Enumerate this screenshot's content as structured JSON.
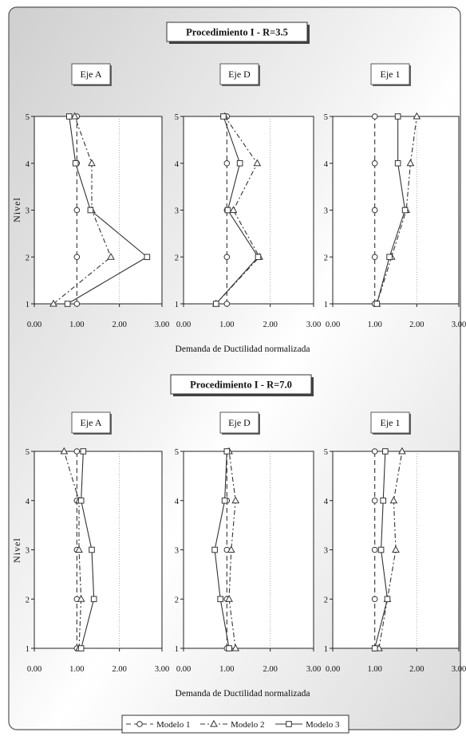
{
  "panel_titles": [
    "Procedimiento I - R=3.5",
    "Procedimiento I - R=7.0"
  ],
  "xlabel": "Demanda de Ductilidad normalizada",
  "ylabel": "Nivel",
  "legend": [
    "Modelo 1",
    "Modelo 2",
    "Modelo 3"
  ],
  "chart_data": [
    {
      "type": "line",
      "group": "Procedimiento I - R=3.5",
      "title": "Eje A",
      "xlim": [
        0,
        3
      ],
      "ylim": [
        1,
        5
      ],
      "xticks": [
        "0.00",
        "1.00",
        "2.00",
        "3.00"
      ],
      "yticks": [
        "1",
        "2",
        "3",
        "4",
        "5"
      ],
      "series": [
        {
          "name": "Modelo 1",
          "x": [
            1.0,
            1.0,
            1.0,
            1.0,
            1.0
          ],
          "y": [
            1,
            2,
            3,
            4,
            5
          ]
        },
        {
          "name": "Modelo 2",
          "x": [
            0.45,
            1.8,
            1.35,
            1.35,
            0.95
          ],
          "y": [
            1,
            2,
            3,
            4,
            5
          ]
        },
        {
          "name": "Modelo 3",
          "x": [
            0.78,
            2.65,
            1.32,
            0.97,
            0.82
          ],
          "y": [
            1,
            2,
            3,
            4,
            5
          ]
        }
      ]
    },
    {
      "type": "line",
      "group": "Procedimiento I - R=3.5",
      "title": "Eje D",
      "xlim": [
        0,
        3
      ],
      "ylim": [
        1,
        5
      ],
      "xticks": [
        "0.00",
        "1.00",
        "2.00",
        "3.00"
      ],
      "yticks": [
        "1",
        "2",
        "3",
        "4",
        "5"
      ],
      "series": [
        {
          "name": "Modelo 1",
          "x": [
            1.0,
            1.0,
            1.0,
            1.0,
            1.0
          ],
          "y": [
            1,
            2,
            3,
            4,
            5
          ]
        },
        {
          "name": "Modelo 2",
          "x": [
            0.75,
            1.75,
            1.15,
            1.7,
            0.95
          ],
          "y": [
            1,
            2,
            3,
            4,
            5
          ]
        },
        {
          "name": "Modelo 3",
          "x": [
            0.75,
            1.72,
            1.02,
            1.3,
            0.92
          ],
          "y": [
            1,
            2,
            3,
            4,
            5
          ]
        }
      ]
    },
    {
      "type": "line",
      "group": "Procedimiento I - R=3.5",
      "title": "Eje 1",
      "xlim": [
        0,
        3
      ],
      "ylim": [
        1,
        5
      ],
      "xticks": [
        "0.00",
        "1.00",
        "2.00",
        "3.00"
      ],
      "yticks": [
        "1",
        "2",
        "3",
        "4",
        "5"
      ],
      "series": [
        {
          "name": "Modelo 1",
          "x": [
            1.0,
            1.0,
            1.0,
            1.0,
            1.0
          ],
          "y": [
            1,
            2,
            3,
            4,
            5
          ]
        },
        {
          "name": "Modelo 2",
          "x": [
            1.05,
            1.4,
            1.75,
            1.85,
            2.0
          ],
          "y": [
            1,
            2,
            3,
            4,
            5
          ]
        },
        {
          "name": "Modelo 3",
          "x": [
            1.05,
            1.35,
            1.72,
            1.55,
            1.55
          ],
          "y": [
            1,
            2,
            3,
            4,
            5
          ]
        }
      ]
    },
    {
      "type": "line",
      "group": "Procedimiento I - R=7.0",
      "title": "Eje A",
      "xlim": [
        0,
        3
      ],
      "ylim": [
        1,
        5
      ],
      "xticks": [
        "0.00",
        "1.00",
        "2.00",
        "3.00"
      ],
      "yticks": [
        "1",
        "2",
        "3",
        "4",
        "5"
      ],
      "series": [
        {
          "name": "Modelo 1",
          "x": [
            1.0,
            1.0,
            1.0,
            1.0,
            1.0
          ],
          "y": [
            1,
            2,
            3,
            4,
            5
          ]
        },
        {
          "name": "Modelo 2",
          "x": [
            1.05,
            1.1,
            1.05,
            1.05,
            0.7
          ],
          "y": [
            1,
            2,
            3,
            4,
            5
          ]
        },
        {
          "name": "Modelo 3",
          "x": [
            1.1,
            1.4,
            1.35,
            1.1,
            1.15
          ],
          "y": [
            1,
            2,
            3,
            4,
            5
          ]
        }
      ]
    },
    {
      "type": "line",
      "group": "Procedimiento I - R=7.0",
      "title": "Eje D",
      "xlim": [
        0,
        3
      ],
      "ylim": [
        1,
        5
      ],
      "xticks": [
        "0.00",
        "1.00",
        "2.00",
        "3.00"
      ],
      "yticks": [
        "1",
        "2",
        "3",
        "4",
        "5"
      ],
      "series": [
        {
          "name": "Modelo 1",
          "x": [
            1.0,
            1.0,
            1.0,
            1.0,
            1.0
          ],
          "y": [
            1,
            2,
            3,
            4,
            5
          ]
        },
        {
          "name": "Modelo 2",
          "x": [
            1.2,
            1.05,
            1.1,
            1.2,
            1.05
          ],
          "y": [
            1,
            2,
            3,
            4,
            5
          ]
        },
        {
          "name": "Modelo 3",
          "x": [
            1.05,
            0.85,
            0.72,
            0.95,
            1.0
          ],
          "y": [
            1,
            2,
            3,
            4,
            5
          ]
        }
      ]
    },
    {
      "type": "line",
      "group": "Procedimiento I - R=7.0",
      "title": "Eje 1",
      "xlim": [
        0,
        3
      ],
      "ylim": [
        1,
        5
      ],
      "xticks": [
        "0.00",
        "1.00",
        "2.00",
        "3.00"
      ],
      "yticks": [
        "1",
        "2",
        "3",
        "4",
        "5"
      ],
      "series": [
        {
          "name": "Modelo 1",
          "x": [
            1.0,
            1.0,
            1.0,
            1.0,
            1.0
          ],
          "y": [
            1,
            2,
            3,
            4,
            5
          ]
        },
        {
          "name": "Modelo 2",
          "x": [
            1.1,
            1.3,
            1.5,
            1.45,
            1.65
          ],
          "y": [
            1,
            2,
            3,
            4,
            5
          ]
        },
        {
          "name": "Modelo 3",
          "x": [
            1.0,
            1.3,
            1.15,
            1.2,
            1.25
          ],
          "y": [
            1,
            2,
            3,
            4,
            5
          ]
        }
      ]
    }
  ]
}
